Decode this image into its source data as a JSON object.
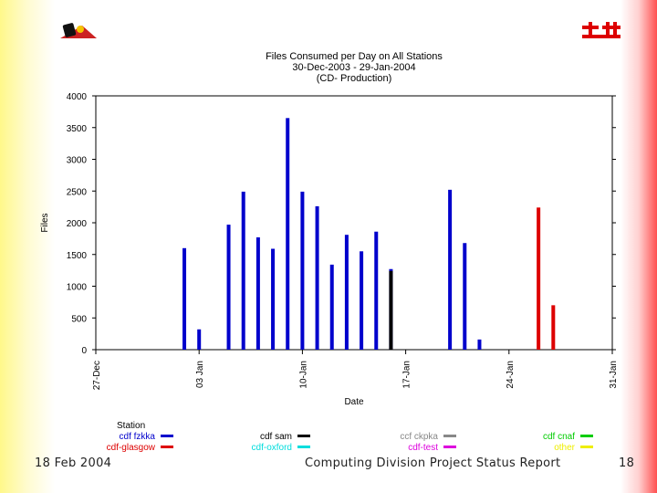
{
  "slide": {
    "footer_left": "18 Feb 2004",
    "footer_center": "Computing Division Project Status Report",
    "footer_right": "18"
  },
  "chart_data": {
    "type": "bar",
    "title_lines": [
      "Files Consumed per Day on All Stations",
      "30-Dec-2003 - 29-Jan-2004",
      "(CD- Production)"
    ],
    "xlabel": "Date",
    "ylabel": "Files",
    "ylim": [
      0,
      4000
    ],
    "yticks": [
      0,
      500,
      1000,
      1500,
      2000,
      2500,
      3000,
      3500,
      4000
    ],
    "xlim_day": [
      0,
      35
    ],
    "xticks": [
      {
        "label": "27-Dec",
        "day": 0
      },
      {
        "label": "03 Jan",
        "day": 7
      },
      {
        "label": "10-Jan",
        "day": 14
      },
      {
        "label": "17-Jan",
        "day": 21
      },
      {
        "label": "24-Jan",
        "day": 28
      },
      {
        "label": "31-Jan",
        "day": 35
      }
    ],
    "legend_title": "Station",
    "series": [
      {
        "name": "cdf fzkka",
        "color": "#0000cc",
        "points": [
          {
            "day": 6,
            "value": 1600
          },
          {
            "day": 7,
            "value": 320
          },
          {
            "day": 9,
            "value": 1970
          },
          {
            "day": 10,
            "value": 2490
          },
          {
            "day": 11,
            "value": 1770
          },
          {
            "day": 12,
            "value": 1590
          },
          {
            "day": 13,
            "value": 3650
          },
          {
            "day": 14,
            "value": 2490
          },
          {
            "day": 15,
            "value": 2260
          },
          {
            "day": 16,
            "value": 1340
          },
          {
            "day": 17,
            "value": 1810
          },
          {
            "day": 18,
            "value": 1550
          },
          {
            "day": 19,
            "value": 1860
          },
          {
            "day": 20,
            "value": 1270
          },
          {
            "day": 24,
            "value": 2520
          },
          {
            "day": 25,
            "value": 1680
          },
          {
            "day": 26,
            "value": 160
          }
        ]
      },
      {
        "name": "cdf-glasgow",
        "color": "#dd0000",
        "points": [
          {
            "day": 30,
            "value": 2240
          },
          {
            "day": 31,
            "value": 700
          }
        ]
      },
      {
        "name": "cdf sam",
        "color": "#000000",
        "points": [
          {
            "day": 20,
            "value": 1240
          }
        ]
      },
      {
        "name": "cdf-oxford",
        "color": "#00dddd",
        "points": []
      },
      {
        "name": "ccf ckpka",
        "color": "#888888",
        "points": []
      },
      {
        "name": "cdf-test",
        "color": "#dd00dd",
        "points": []
      },
      {
        "name": "cdf cnaf",
        "color": "#00cc00",
        "points": []
      },
      {
        "name": "other",
        "color": "#eeee00",
        "points": []
      }
    ]
  }
}
